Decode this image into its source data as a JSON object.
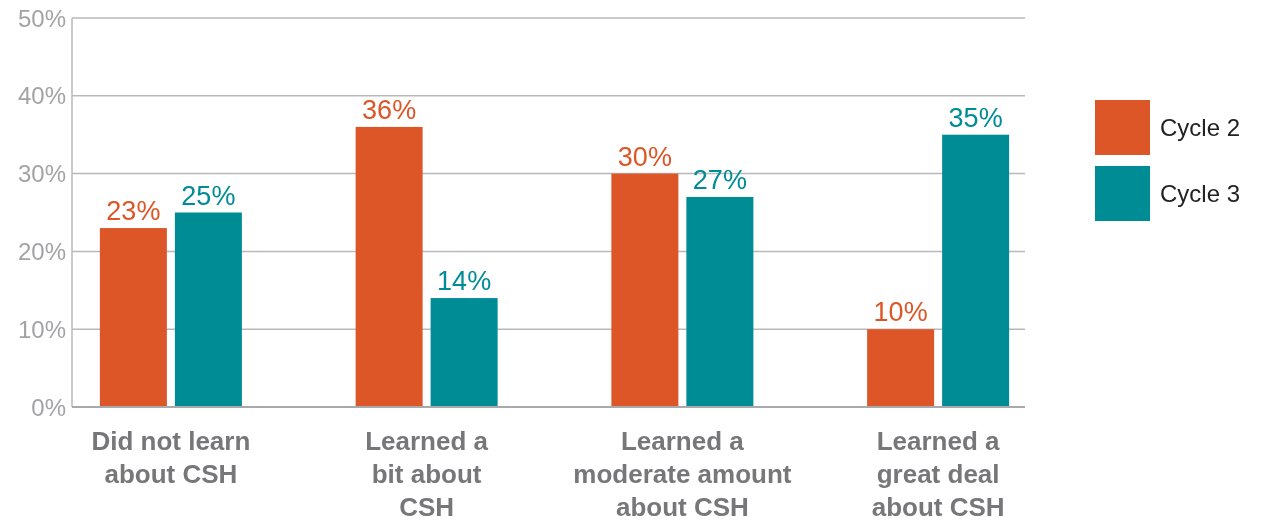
{
  "chart_data": {
    "type": "bar",
    "categories": [
      "Did not learn\nabout CSH",
      "Learned a\nbit about\nCSH",
      "Learned a\nmoderate amount\nabout CSH",
      "Learned a\ngreat deal\nabout CSH"
    ],
    "series": [
      {
        "name": "Cycle 2",
        "color": "#dd5627",
        "values": [
          23,
          36,
          30,
          10
        ],
        "value_labels": [
          "23%",
          "36%",
          "30%",
          "10%"
        ]
      },
      {
        "name": "Cycle 3",
        "color": "#008c95",
        "values": [
          25,
          14,
          27,
          35
        ],
        "value_labels": [
          "25%",
          "14%",
          "27%",
          "35%"
        ]
      }
    ],
    "ylim": [
      0,
      50
    ],
    "yticks": [
      {
        "value": 0,
        "label": "0%"
      },
      {
        "value": 10,
        "label": "10%"
      },
      {
        "value": 20,
        "label": "20%"
      },
      {
        "value": 30,
        "label": "30%"
      },
      {
        "value": 40,
        "label": "40%"
      },
      {
        "value": 50,
        "label": "50%"
      }
    ],
    "grid": "y",
    "legend": "right"
  }
}
